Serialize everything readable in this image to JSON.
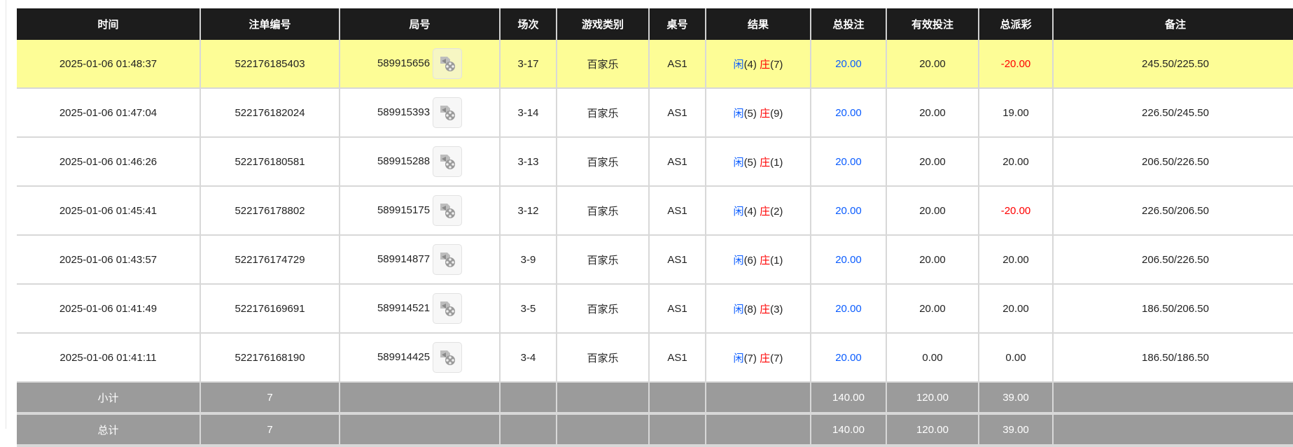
{
  "headers": [
    "时间",
    "注单编号",
    "局号",
    "场次",
    "游戏类别",
    "桌号",
    "结果",
    "总投注",
    "有效投注",
    "总派彩",
    "备注"
  ],
  "colors": {
    "player": "#0a5cff",
    "banker": "#ff0000",
    "highlight": "#fdfd96",
    "header": "#1c1c1c",
    "summary": "#9b9b9b"
  },
  "rows": [
    {
      "time": "2025-01-06 01:48:37",
      "bet_id": "522176185403",
      "round": "589915656",
      "shoe": "3-17",
      "game": "百家乐",
      "table": "AS1",
      "player_label": "闲",
      "player_score": "(4)",
      "banker_label": "庄",
      "banker_score": "(7)",
      "total_bet": "20.00",
      "valid_bet": "20.00",
      "payout": "-20.00",
      "payout_negative": true,
      "note": "245.50/225.50",
      "highlighted": true
    },
    {
      "time": "2025-01-06 01:47:04",
      "bet_id": "522176182024",
      "round": "589915393",
      "shoe": "3-14",
      "game": "百家乐",
      "table": "AS1",
      "player_label": "闲",
      "player_score": "(5)",
      "banker_label": "庄",
      "banker_score": "(9)",
      "total_bet": "20.00",
      "valid_bet": "20.00",
      "payout": "19.00",
      "payout_negative": false,
      "note": "226.50/245.50"
    },
    {
      "time": "2025-01-06 01:46:26",
      "bet_id": "522176180581",
      "round": "589915288",
      "shoe": "3-13",
      "game": "百家乐",
      "table": "AS1",
      "player_label": "闲",
      "player_score": "(5)",
      "banker_label": "庄",
      "banker_score": "(1)",
      "total_bet": "20.00",
      "valid_bet": "20.00",
      "payout": "20.00",
      "payout_negative": false,
      "note": "206.50/226.50"
    },
    {
      "time": "2025-01-06 01:45:41",
      "bet_id": "522176178802",
      "round": "589915175",
      "shoe": "3-12",
      "game": "百家乐",
      "table": "AS1",
      "player_label": "闲",
      "player_score": "(4)",
      "banker_label": "庄",
      "banker_score": "(2)",
      "total_bet": "20.00",
      "valid_bet": "20.00",
      "payout": "-20.00",
      "payout_negative": true,
      "note": "226.50/206.50"
    },
    {
      "time": "2025-01-06 01:43:57",
      "bet_id": "522176174729",
      "round": "589914877",
      "shoe": "3-9",
      "game": "百家乐",
      "table": "AS1",
      "player_label": "闲",
      "player_score": "(6)",
      "banker_label": "庄",
      "banker_score": "(1)",
      "total_bet": "20.00",
      "valid_bet": "20.00",
      "payout": "20.00",
      "payout_negative": false,
      "note": "206.50/226.50"
    },
    {
      "time": "2025-01-06 01:41:49",
      "bet_id": "522176169691",
      "round": "589914521",
      "shoe": "3-5",
      "game": "百家乐",
      "table": "AS1",
      "player_label": "闲",
      "player_score": "(8)",
      "banker_label": "庄",
      "banker_score": "(3)",
      "total_bet": "20.00",
      "valid_bet": "20.00",
      "payout": "20.00",
      "payout_negative": false,
      "note": "186.50/206.50"
    },
    {
      "time": "2025-01-06 01:41:11",
      "bet_id": "522176168190",
      "round": "589914425",
      "shoe": "3-4",
      "game": "百家乐",
      "table": "AS1",
      "player_label": "闲",
      "player_score": "(7)",
      "banker_label": "庄",
      "banker_score": "(7)",
      "total_bet": "20.00",
      "valid_bet": "0.00",
      "payout": "0.00",
      "payout_negative": false,
      "note": "186.50/186.50"
    }
  ],
  "subtotal": {
    "label": "小计",
    "count": "7",
    "total_bet": "140.00",
    "valid_bet": "120.00",
    "payout": "39.00"
  },
  "total": {
    "label": "总计",
    "count": "7",
    "total_bet": "140.00",
    "valid_bet": "120.00",
    "payout": "39.00"
  }
}
